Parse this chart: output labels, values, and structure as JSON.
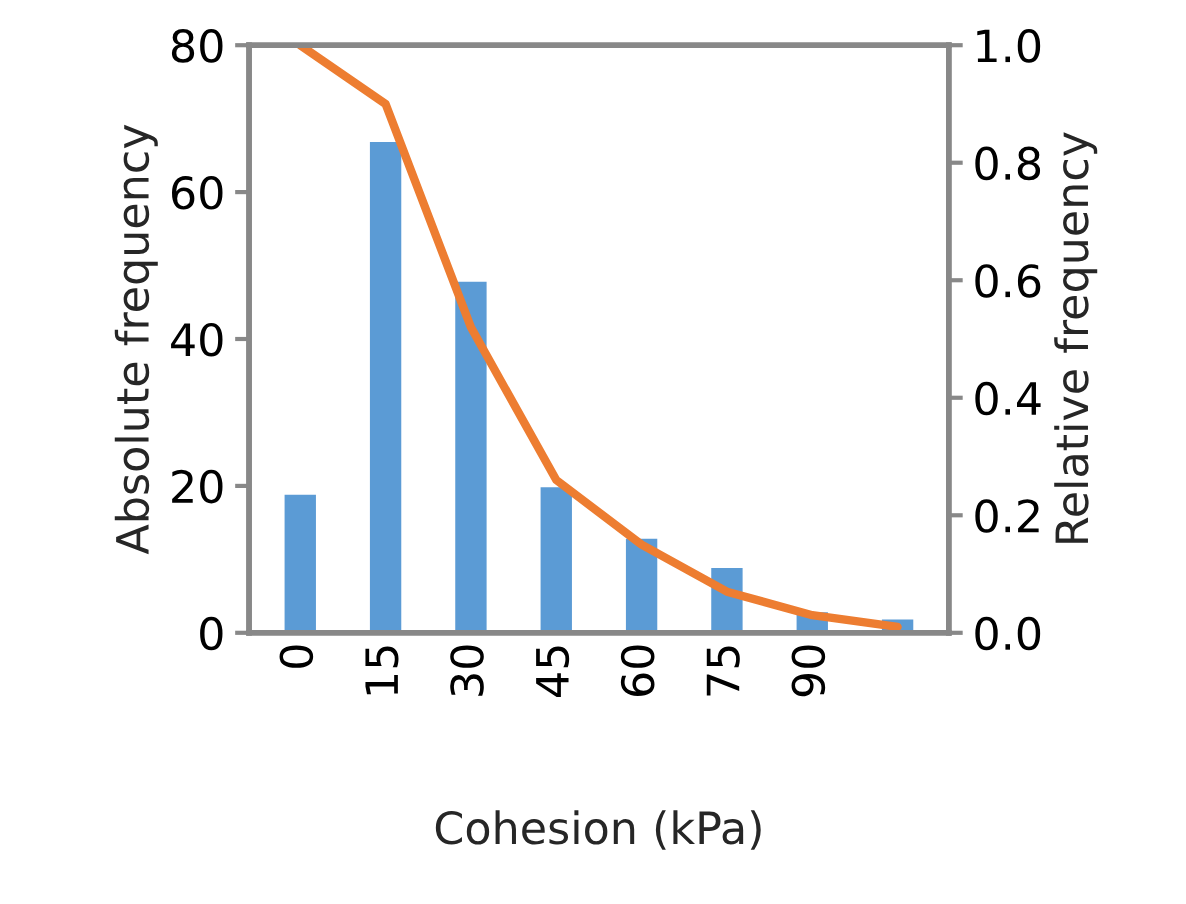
{
  "chart_data": {
    "type": "bar",
    "xlabel": "Cohesion (kPa)",
    "ylabel": "Absolute frequency",
    "y2label": "Relative frequency",
    "categories": [
      "0",
      "15",
      "30",
      "45",
      "60",
      "75",
      "90",
      null
    ],
    "series": [
      {
        "color": "#5b9bd5",
        "values": [
          19,
          67,
          48,
          20,
          13,
          9,
          3,
          2
        ]
      },
      {
        "type": "line",
        "axis": "y2",
        "color": "#ed7d31",
        "values": [
          1.0,
          0.9,
          0.52,
          0.26,
          0.15,
          0.07,
          0.03,
          0.01
        ]
      }
    ],
    "ylim": [
      0,
      80
    ],
    "yticks": [
      0,
      20,
      40,
      60,
      80
    ],
    "y2lim": [
      0,
      1
    ],
    "y2ticks": [
      {
        "value": 0,
        "label": "0.0"
      },
      {
        "value": 0.2,
        "label": "0.2"
      },
      {
        "value": 0.4,
        "label": "0.4"
      },
      {
        "value": 0.6,
        "label": "0.6"
      },
      {
        "value": 0.8,
        "label": "0.8"
      },
      {
        "value": 1,
        "label": "1.0"
      }
    ],
    "grid": false,
    "legend": false,
    "marker": "none",
    "line_style": "solid"
  }
}
